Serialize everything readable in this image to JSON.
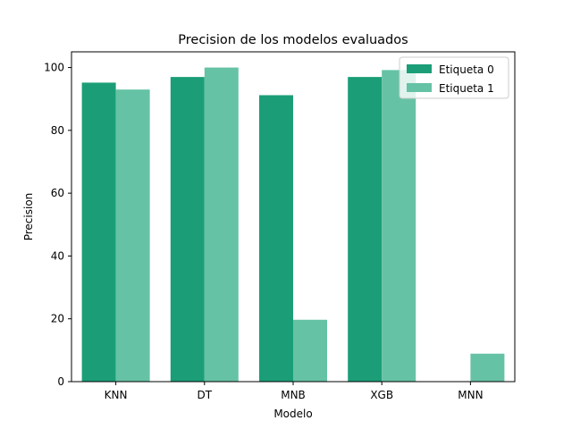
{
  "chart_data": {
    "type": "bar",
    "title": "Precision de los modelos evaluados",
    "xlabel": "Modelo",
    "ylabel": "Precision",
    "categories": [
      "KNN",
      "DT",
      "MNB",
      "XGB",
      "MNN"
    ],
    "series": [
      {
        "name": "Etiqueta 0",
        "color": "#1b9e77",
        "values": [
          95.2,
          97.0,
          91.2,
          97.0,
          0
        ]
      },
      {
        "name": "Etiqueta 1",
        "color": "#66c2a5",
        "values": [
          93.0,
          100.0,
          19.7,
          99.2,
          8.9
        ]
      }
    ],
    "ylim": [
      0,
      105
    ],
    "yticks": [
      0,
      20,
      40,
      60,
      80,
      100
    ],
    "grid": false,
    "legend_position": "top-right"
  }
}
